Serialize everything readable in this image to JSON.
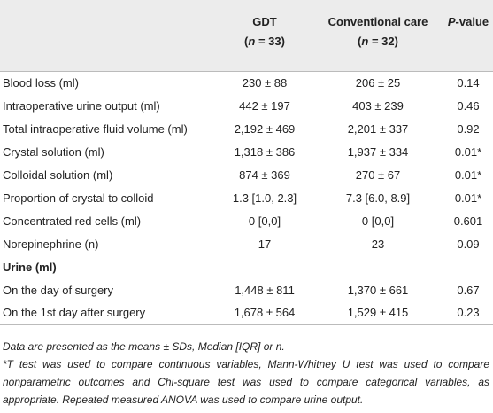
{
  "table": {
    "header": [
      {
        "line1": ""
      },
      {
        "line1": "GDT",
        "line2": [
          "(",
          "n",
          " = 33)"
        ]
      },
      {
        "line1": "Conventional care",
        "line2": [
          "(",
          "n",
          " = 32)"
        ]
      },
      {
        "line1": [
          "P",
          "-value"
        ]
      }
    ],
    "groups": [
      {
        "rows": [
          [
            "Blood loss (ml)",
            "230 ± 88",
            "206 ± 25",
            "0.14"
          ],
          [
            "Intraoperative urine output (ml)",
            "442 ± 197",
            "403 ± 239",
            "0.46"
          ],
          [
            "Total intraoperative fluid volume (ml)",
            "2,192 ± 469",
            "2,201 ± 337",
            "0.92"
          ],
          [
            "Crystal solution (ml)",
            "1,318 ± 386",
            "1,937 ± 334",
            "0.01*"
          ],
          [
            "Colloidal solution (ml)",
            "874 ± 369",
            "270 ± 67",
            "0.01*"
          ],
          [
            "Proportion of crystal to colloid",
            "1.3 [1.0, 2.3]",
            "7.3 [6.0, 8.9]",
            "0.01*"
          ],
          [
            "Concentrated red cells (ml)",
            "0 [0,0]",
            "0 [0,0]",
            "0.601"
          ],
          [
            "Norepinephrine (n)",
            "17",
            "23",
            "0.09"
          ]
        ]
      },
      {
        "heading": "Urine (ml)",
        "rows": [
          [
            "On the day of surgery",
            "1,448 ± 811",
            "1,370 ± 661",
            "0.67"
          ],
          [
            "On the 1st day after surgery",
            "1,678 ± 564",
            "1,529 ± 415",
            "0.23"
          ]
        ]
      }
    ]
  },
  "notes": [
    "Data are presented as the means ± SDs, Median [IQR] or n.",
    "*T test was used to compare continuous variables, Mann-Whitney U test was used to compare nonparametric outcomes and Chi-square test was used to compare categorical variables, as appropriate. Repeated measured ANOVA was used to compare urine output."
  ]
}
